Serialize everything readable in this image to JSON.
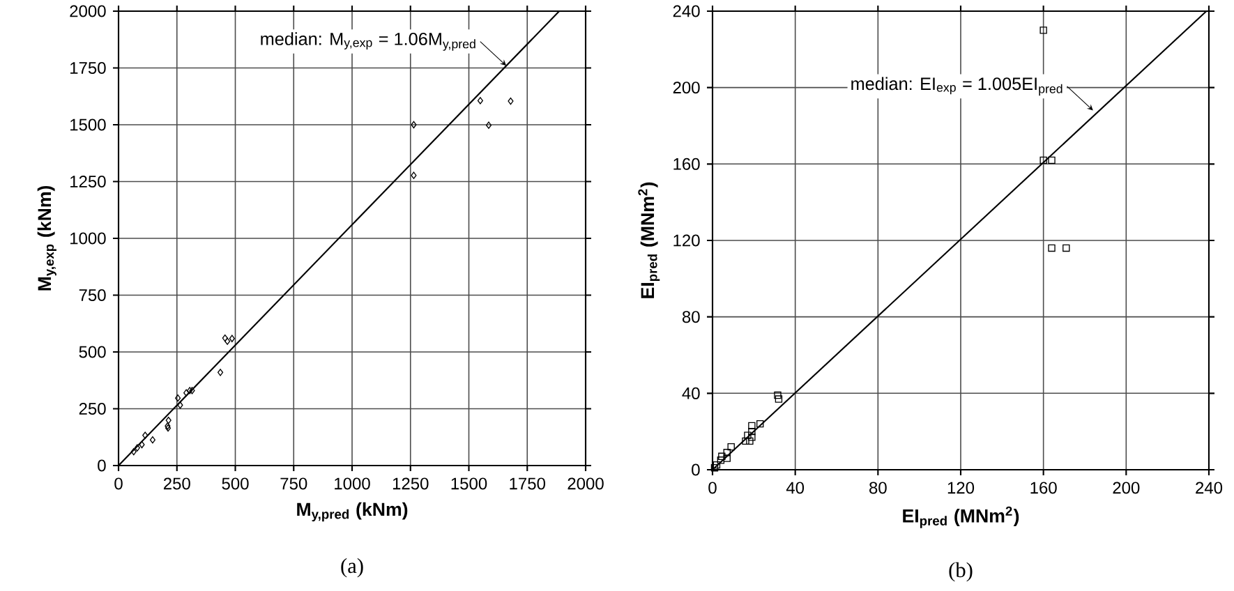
{
  "chart_data": [
    {
      "type": "scatter",
      "title": "(a)",
      "xlabel": "M$_{y,pred}$ (kNm)",
      "ylabel": "M$_{y,exp}$ (kNm)",
      "marker": "diamond",
      "grid": true,
      "xlim": [
        0,
        2000
      ],
      "ylim": [
        0,
        2000
      ],
      "xticks": [
        0,
        250,
        500,
        750,
        1000,
        1250,
        1500,
        1750,
        2000
      ],
      "yticks": [
        0,
        250,
        500,
        750,
        1000,
        1250,
        1500,
        1750,
        2000
      ],
      "annotations": [
        {
          "text": "median: M$_{y,exp}$ = 1.06M$_{y,pred}$",
          "x": 1660,
          "y": 1760
        }
      ],
      "series": [
        {
          "color": "#000000",
          "x": [
            65,
            80,
            100,
            114,
            146,
            210,
            214,
            212,
            254,
            264,
            290,
            305,
            315,
            436,
            456,
            466,
            486,
            1264,
            1264,
            1549,
            1585,
            1679
          ],
          "values": [
            61,
            78,
            92,
            133,
            113,
            174,
            199,
            165,
            297,
            266,
            320,
            330,
            330,
            410,
            561,
            547,
            559,
            1500,
            1277,
            1606,
            1498,
            1604
          ]
        },
        {
          "type": "line",
          "marker": "none",
          "color": "#000000",
          "x": [
            0,
            1887
          ],
          "values": [
            0,
            2000
          ]
        }
      ]
    },
    {
      "type": "scatter",
      "title": "(b)",
      "xlabel": "EI$_{pred}$ (MNm$^{2}$)",
      "ylabel": "EI$_{pred}$ (MNm$^{2}$)",
      "marker": "square",
      "grid": true,
      "xlim": [
        0,
        240
      ],
      "ylim": [
        0,
        240
      ],
      "xticks": [
        0,
        40,
        80,
        120,
        160,
        200,
        240
      ],
      "yticks": [
        0,
        40,
        80,
        120,
        160,
        200,
        240
      ],
      "annotations": [
        {
          "text": "median: EI$_{exp}$ = 1.005EI$_{pred}$",
          "x": 184,
          "y": 188
        }
      ],
      "series": [
        {
          "color": "#000000",
          "x": [
            160,
            160,
            164,
            164,
            171,
            31.5,
            32,
            23,
            19,
            19,
            19,
            16,
            18,
            17,
            9,
            7,
            7,
            4.5,
            4,
            2,
            1
          ],
          "values": [
            230,
            162,
            162,
            116,
            116,
            39,
            37,
            24,
            23,
            20,
            17,
            15,
            15,
            18,
            12,
            9,
            6,
            7,
            5,
            2.5,
            1
          ]
        },
        {
          "type": "line",
          "marker": "none",
          "color": "#000000",
          "x": [
            0,
            238.8
          ],
          "values": [
            0,
            240
          ]
        }
      ]
    }
  ]
}
